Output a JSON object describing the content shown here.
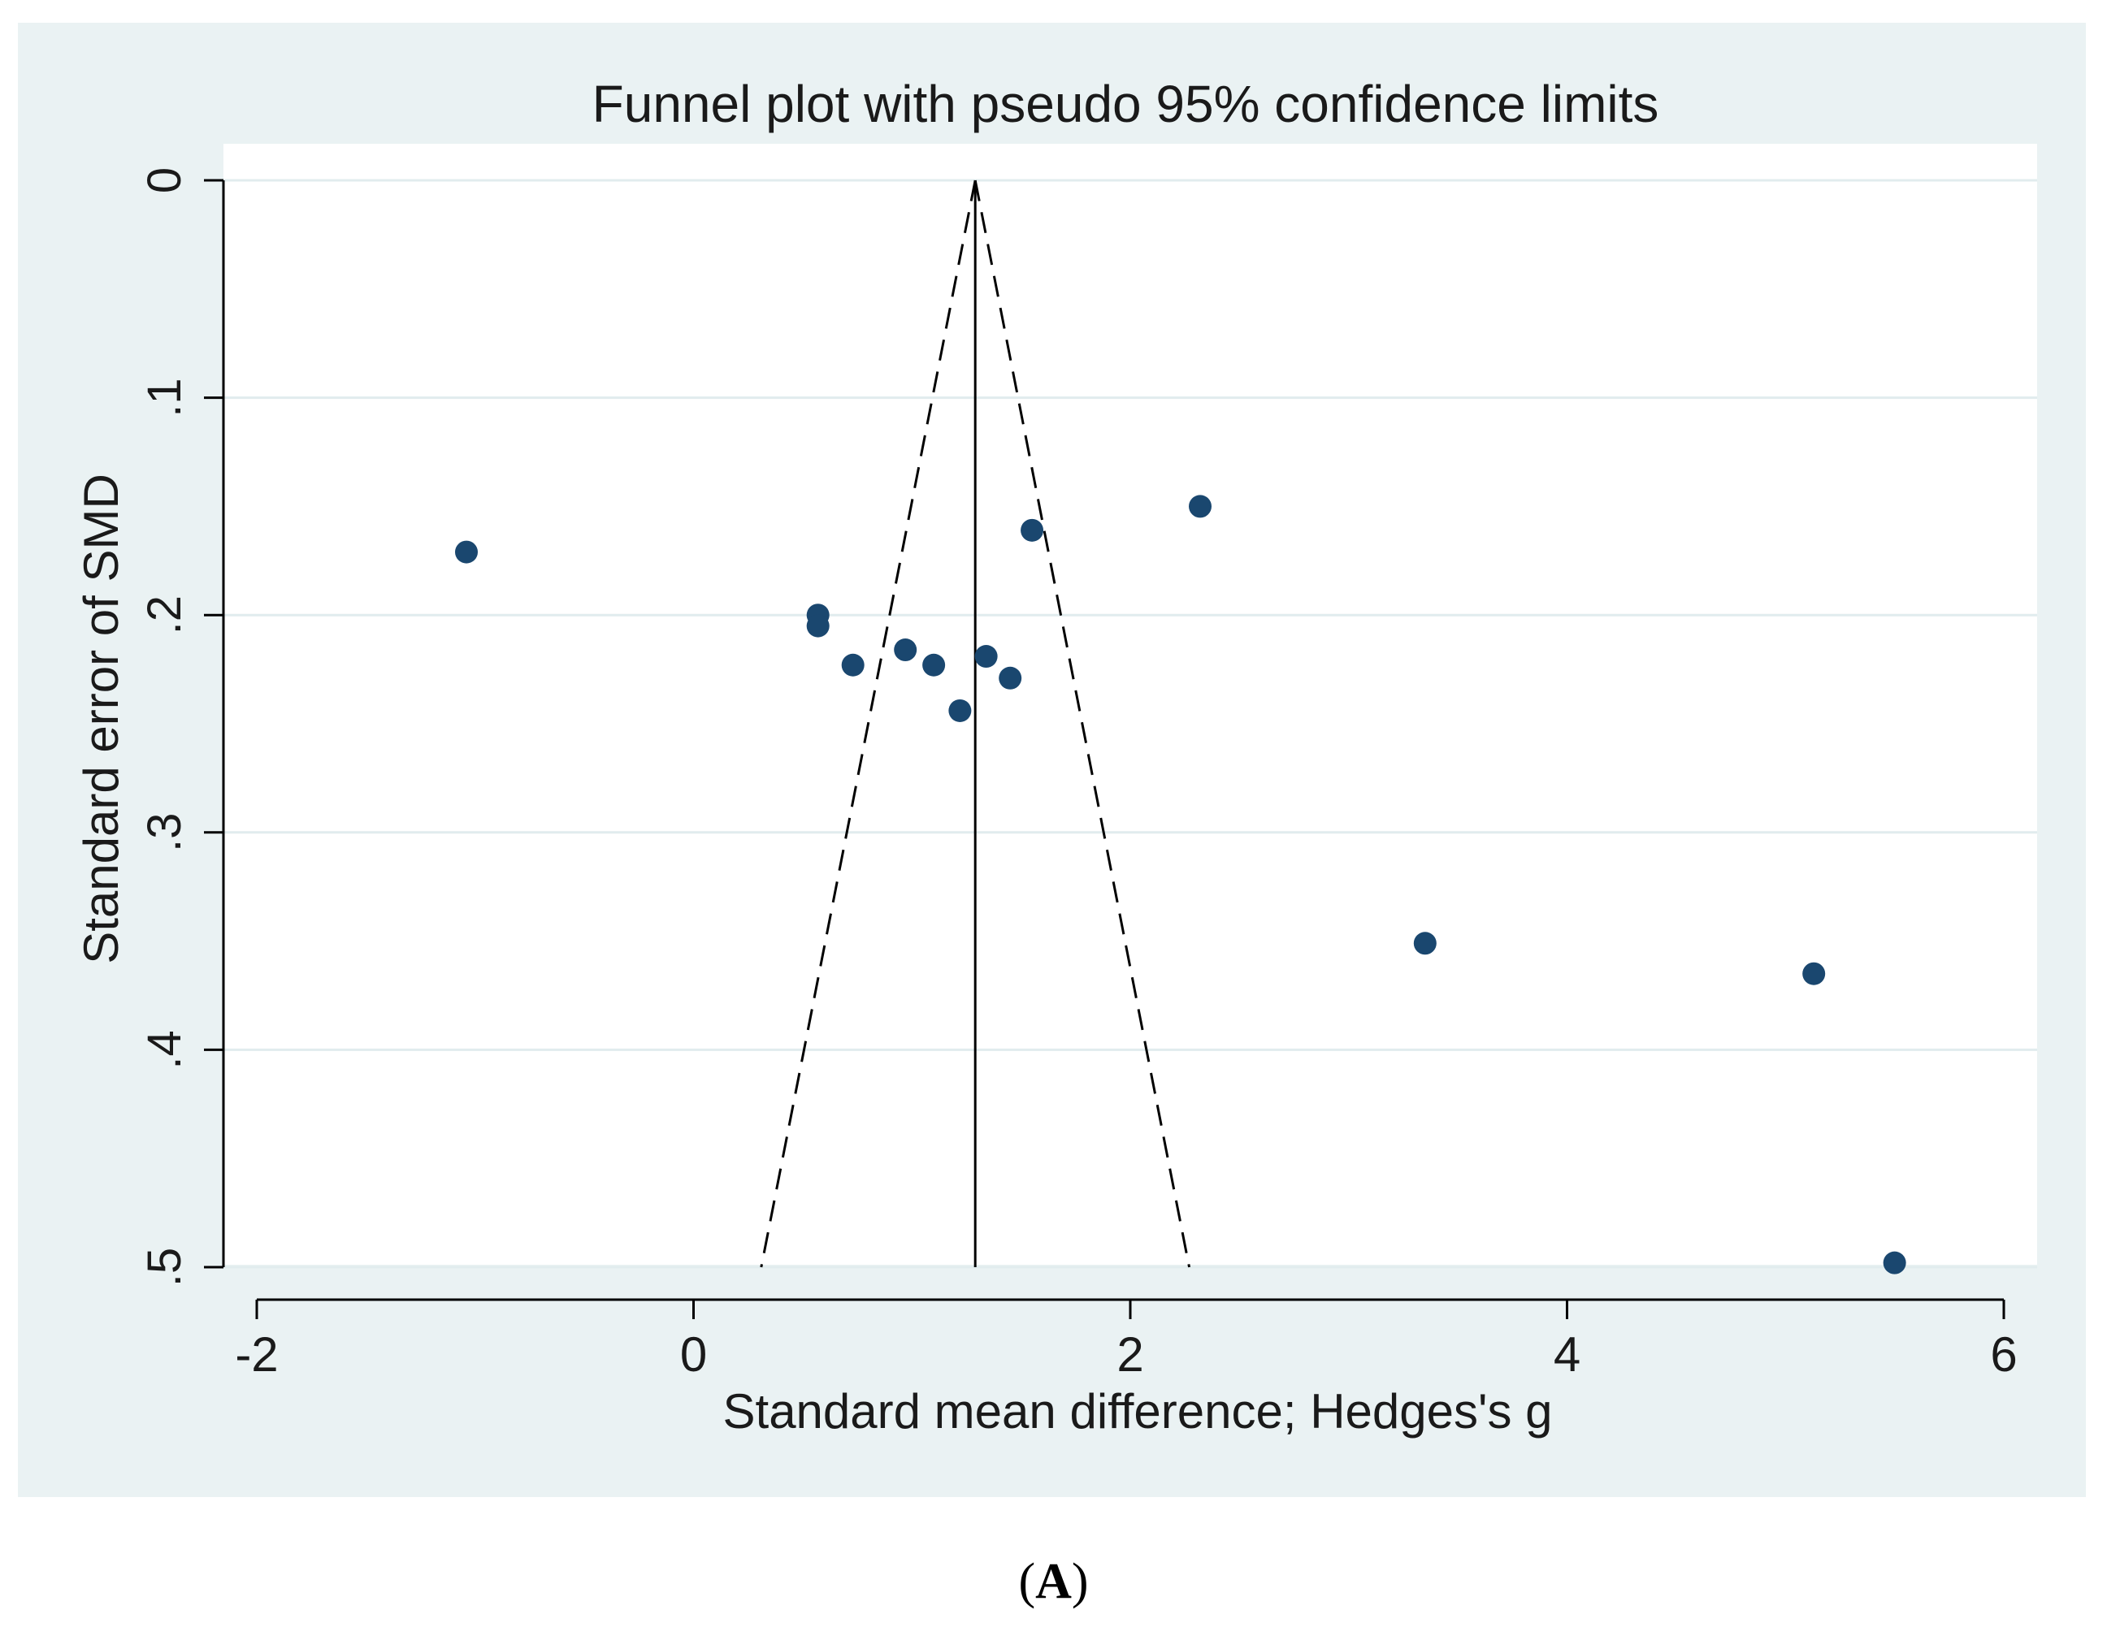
{
  "chart_data": {
    "type": "scatter",
    "title": "Funnel plot with pseudo 95% confidence limits",
    "xlabel": "Standard mean difference; Hedges's g",
    "ylabel": "Standard error of SMD",
    "xlim": [
      -2,
      6
    ],
    "ylim": [
      0,
      0.5
    ],
    "y_axis_inverted": true,
    "grid": true,
    "x_ticks": [
      -2,
      0,
      2,
      4,
      6
    ],
    "x_tick_labels": [
      "-2",
      "0",
      "2",
      "4",
      "6"
    ],
    "y_ticks": [
      0,
      0.1,
      0.2,
      0.3,
      0.4,
      0.5
    ],
    "y_tick_labels": [
      "0",
      ".1",
      ".2",
      ".3",
      ".4",
      ".5"
    ],
    "pooled_estimate": 1.29,
    "confidence_limits": {
      "level": 0.95,
      "se_max": 0.5,
      "lower_at_se_max": 0.31,
      "upper_at_se_max": 2.27
    },
    "points": [
      {
        "x": -1.04,
        "y": 0.171
      },
      {
        "x": 0.57,
        "y": 0.2
      },
      {
        "x": 0.57,
        "y": 0.205
      },
      {
        "x": 0.73,
        "y": 0.223
      },
      {
        "x": 0.97,
        "y": 0.216
      },
      {
        "x": 1.1,
        "y": 0.223
      },
      {
        "x": 1.22,
        "y": 0.244
      },
      {
        "x": 1.34,
        "y": 0.219
      },
      {
        "x": 1.45,
        "y": 0.229
      },
      {
        "x": 1.55,
        "y": 0.161
      },
      {
        "x": 2.32,
        "y": 0.15
      },
      {
        "x": 3.35,
        "y": 0.351
      },
      {
        "x": 5.13,
        "y": 0.365
      },
      {
        "x": 5.5,
        "y": 0.498
      }
    ]
  },
  "caption": {
    "open": "(",
    "label": "A",
    "close": ")"
  },
  "colors": {
    "outer_bg": "#eaf2f3",
    "plot_bg": "#ffffff",
    "grid": "#e1ecee",
    "marker": "#1a476f",
    "line": "#000000"
  }
}
